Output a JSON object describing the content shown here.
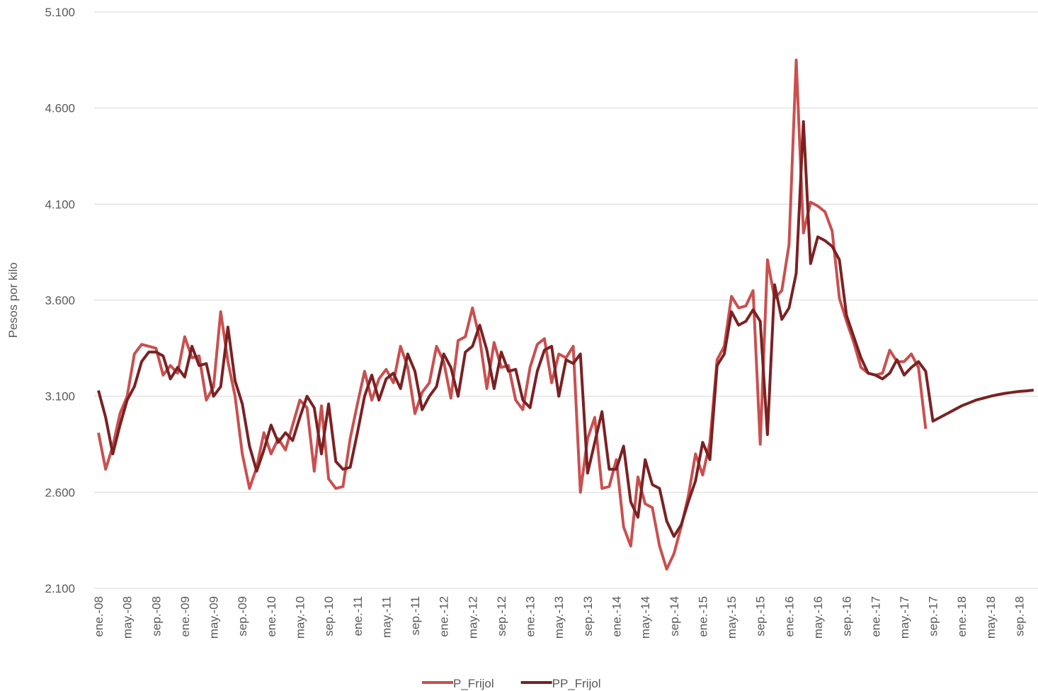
{
  "chart_data": {
    "type": "line",
    "y_label": "Pesos por kilo",
    "ylim": [
      2100,
      5100
    ],
    "yticks": [
      {
        "value": 2100,
        "label": "2.100"
      },
      {
        "value": 2600,
        "label": "2.600"
      },
      {
        "value": 3100,
        "label": "3.100"
      },
      {
        "value": 3600,
        "label": "3.600"
      },
      {
        "value": 4100,
        "label": "4.100"
      },
      {
        "value": 4600,
        "label": "4.600"
      },
      {
        "value": 5100,
        "label": "5.100"
      }
    ],
    "grid": true,
    "legend": "bottom",
    "categories": [
      "ene.-08",
      null,
      null,
      null,
      "may.-08",
      null,
      null,
      null,
      "sep.-08",
      null,
      null,
      null,
      "ene.-09",
      null,
      null,
      null,
      "may.-09",
      null,
      null,
      null,
      "sep.-09",
      null,
      null,
      null,
      "ene.-10",
      null,
      null,
      null,
      "may.-10",
      null,
      null,
      null,
      "sep.-10",
      null,
      null,
      null,
      "ene.-11",
      null,
      null,
      null,
      "may.-11",
      null,
      null,
      null,
      "sep.-11",
      null,
      null,
      null,
      "ene.-12",
      null,
      null,
      null,
      "may.-12",
      null,
      null,
      null,
      "sep.-12",
      null,
      null,
      null,
      "ene.-13",
      null,
      null,
      null,
      "may.-13",
      null,
      null,
      null,
      "sep.-13",
      null,
      null,
      null,
      "ene.-14",
      null,
      null,
      null,
      "may.-14",
      null,
      null,
      null,
      "sep.-14",
      null,
      null,
      null,
      "ene.-15",
      null,
      null,
      null,
      "may.-15",
      null,
      null,
      null,
      "sep.-15",
      null,
      null,
      null,
      "ene.-16",
      null,
      null,
      null,
      "may.-16",
      null,
      null,
      null,
      "sep.-16",
      null,
      null,
      null,
      "ene.-17",
      null,
      null,
      null,
      "may.-17",
      null,
      null,
      null,
      "sep.-17",
      null,
      null,
      null,
      "ene.-18",
      null,
      null,
      null,
      "may.-18",
      null,
      null,
      null,
      "sep.-18",
      null,
      null
    ],
    "series": [
      {
        "name": "P_Frijol",
        "color": "#c9504f",
        "values": [
          2910,
          2720,
          2840,
          3010,
          3100,
          3320,
          3370,
          3360,
          3350,
          3210,
          3260,
          3220,
          3410,
          3300,
          3310,
          3080,
          3150,
          3540,
          3280,
          3100,
          2800,
          2620,
          2730,
          2910,
          2800,
          2880,
          2820,
          2950,
          3080,
          3040,
          2710,
          3050,
          2670,
          2620,
          2630,
          2880,
          3060,
          3230,
          3080,
          3190,
          3240,
          3170,
          3360,
          3250,
          3010,
          3120,
          3170,
          3360,
          3280,
          3090,
          3390,
          3410,
          3560,
          3400,
          3140,
          3380,
          3250,
          3260,
          3080,
          3030,
          3250,
          3370,
          3400,
          3170,
          3320,
          3300,
          3360,
          2600,
          2880,
          2990,
          2620,
          2630,
          2770,
          2420,
          2320,
          2680,
          2540,
          2520,
          2320,
          2200,
          2280,
          2420,
          2580,
          2800,
          2690,
          2860,
          3290,
          3360,
          3620,
          3560,
          3570,
          3650,
          2850,
          3810,
          3610,
          3650,
          3890,
          4850,
          3950,
          4110,
          4090,
          4060,
          3960,
          3610,
          3490,
          3380,
          3250,
          3220,
          3210,
          3220,
          3340,
          3280,
          3280,
          3320,
          3250,
          2930,
          null,
          null,
          null,
          null,
          null,
          null,
          null,
          null,
          null,
          null,
          null,
          null,
          null,
          null,
          null
        ]
      },
      {
        "name": "PP_Frijol",
        "color": "#7b2123",
        "values": [
          3130,
          2990,
          2800,
          2950,
          3080,
          3150,
          3280,
          3330,
          3330,
          3310,
          3190,
          3250,
          3200,
          3360,
          3260,
          3270,
          3100,
          3150,
          3460,
          3180,
          3060,
          2840,
          2710,
          2820,
          2950,
          2860,
          2910,
          2870,
          2990,
          3100,
          3040,
          2800,
          3060,
          2760,
          2720,
          2730,
          2910,
          3100,
          3210,
          3080,
          3190,
          3220,
          3140,
          3320,
          3230,
          3030,
          3100,
          3150,
          3320,
          3250,
          3100,
          3330,
          3360,
          3470,
          3340,
          3140,
          3330,
          3230,
          3240,
          3080,
          3040,
          3230,
          3340,
          3360,
          3100,
          3290,
          3270,
          3320,
          2700,
          2860,
          3020,
          2720,
          2720,
          2840,
          2550,
          2470,
          2770,
          2640,
          2620,
          2450,
          2370,
          2430,
          2550,
          2660,
          2860,
          2770,
          3260,
          3320,
          3540,
          3470,
          3490,
          3550,
          3490,
          2900,
          3680,
          3500,
          3560,
          3740,
          4530,
          3790,
          3930,
          3910,
          3880,
          3810,
          3520,
          3410,
          3300,
          3220,
          3210,
          3190,
          3220,
          3290,
          3210,
          3250,
          3280,
          3230,
          2970,
          2990,
          3010,
          3030,
          3050,
          3065,
          3080,
          3090,
          3100,
          3108,
          3115,
          3120,
          3125,
          3128,
          3132
        ]
      }
    ]
  }
}
